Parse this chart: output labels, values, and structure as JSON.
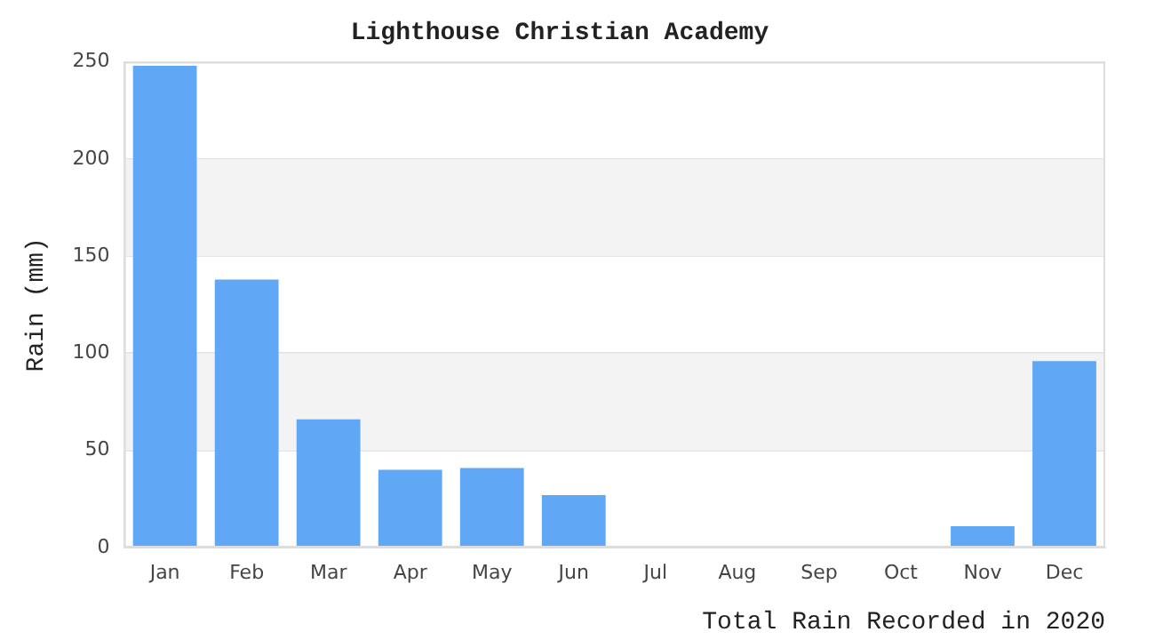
{
  "chart_data": {
    "type": "bar",
    "title": "Lighthouse Christian Academy",
    "xlabel": "Total Rain Recorded in 2020",
    "ylabel": "Rain (mm)",
    "categories": [
      "Jan",
      "Feb",
      "Mar",
      "Apr",
      "May",
      "Jun",
      "Jul",
      "Aug",
      "Sep",
      "Oct",
      "Nov",
      "Dec"
    ],
    "values": [
      248,
      138,
      66,
      40,
      41,
      27,
      0,
      0,
      0,
      0,
      11,
      96
    ],
    "color": "#60a8f5",
    "ylim": [
      0,
      250
    ],
    "yticks": [
      0,
      50,
      100,
      150,
      200,
      250
    ],
    "grid": true,
    "legend": false
  }
}
